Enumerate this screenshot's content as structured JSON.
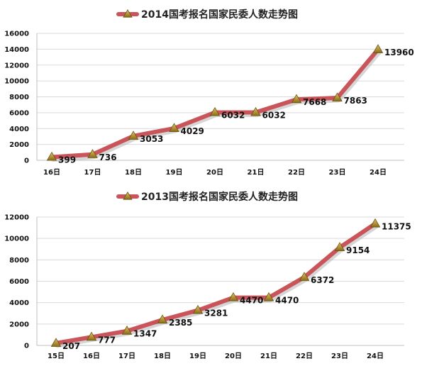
{
  "chart_data": [
    {
      "type": "line",
      "legend_placement": "top-center",
      "grid": true,
      "categories": [
        "16日",
        "17日",
        "18日",
        "19日",
        "20日",
        "21日",
        "22日",
        "23日",
        "24日"
      ],
      "series": [
        {
          "name": "2014国考报名国家民委人数走势图",
          "values": [
            399,
            736,
            3053,
            4029,
            6032,
            6032,
            7668,
            7863,
            13960
          ]
        }
      ],
      "ylim": [
        0,
        16000
      ],
      "yticks": [
        "0",
        "2000",
        "4000",
        "6000",
        "8000",
        "10000",
        "12000",
        "14000",
        "16000"
      ],
      "line_color": "#c9545a",
      "marker_color": "#b9952e"
    },
    {
      "type": "line",
      "legend_placement": "top-center",
      "grid": true,
      "categories": [
        "15日",
        "16日",
        "17日",
        "18日",
        "19日",
        "20日",
        "21日",
        "22日",
        "23日",
        "24日"
      ],
      "series": [
        {
          "name": "2013国考报名国家民委人数走势图",
          "values": [
            207,
            777,
            1347,
            2385,
            3281,
            4470,
            4470,
            6372,
            9154,
            11375
          ]
        }
      ],
      "ylim": [
        0,
        12000
      ],
      "yticks": [
        "0",
        "2000",
        "4000",
        "6000",
        "8000",
        "10000",
        "12000"
      ],
      "line_color": "#c9545a",
      "marker_color": "#b9952e"
    }
  ]
}
